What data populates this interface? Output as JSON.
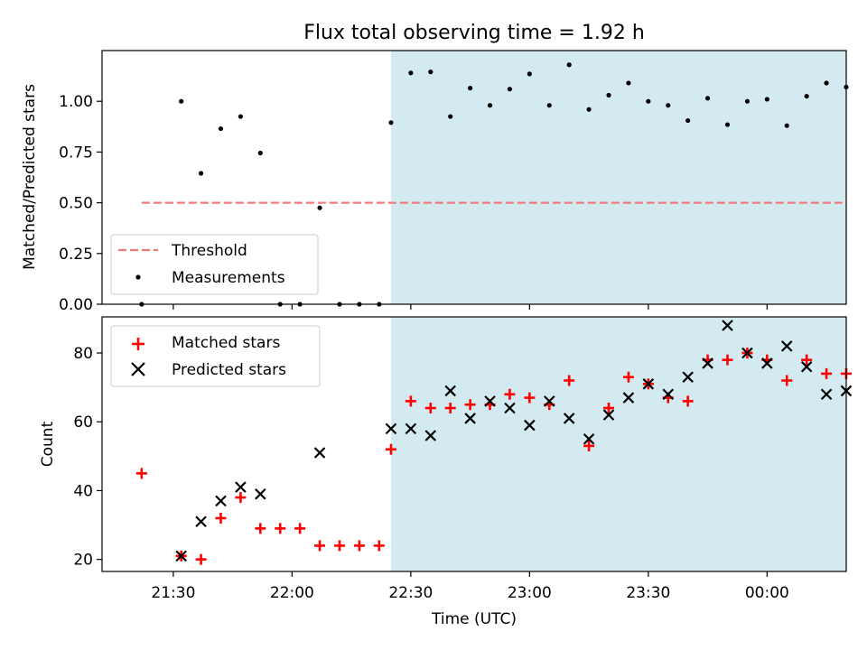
{
  "chart_data": [
    {
      "type": "scatter",
      "title": "Flux total observing time = 1.92 h",
      "xlabel": "",
      "ylabel": "Matched/Predicted stars",
      "xlim": [
        -18,
        170
      ],
      "ylim": [
        0.0,
        1.25
      ],
      "yticks": [
        0.0,
        0.25,
        0.5,
        0.75,
        1.0
      ],
      "ytick_labels": [
        "0.00",
        "0.25",
        "0.50",
        "0.75",
        "1.00"
      ],
      "shaded_region": {
        "x_start": 55,
        "x_end": 170,
        "color": "#d4eaf1"
      },
      "threshold": {
        "name": "Threshold",
        "y": 0.5,
        "x_start": -8,
        "x_end": 170,
        "color": "#f07a7a"
      },
      "series": [
        {
          "name": "Measurements",
          "marker": "dot",
          "color": "#000000",
          "x": [
            -8,
            2,
            7,
            12,
            17,
            22,
            27,
            32,
            37,
            42,
            47,
            52,
            55,
            60,
            65,
            70,
            75,
            80,
            85,
            90,
            95,
            100,
            105,
            110,
            115,
            120,
            125,
            130,
            135,
            140,
            145,
            150,
            155,
            160,
            165,
            170
          ],
          "y": [
            0.0,
            1.0,
            0.645,
            0.865,
            0.925,
            0.745,
            0.0,
            0.0,
            0.475,
            0.0,
            0.0,
            0.0,
            0.895,
            1.14,
            1.145,
            0.925,
            1.065,
            0.98,
            1.06,
            1.135,
            0.98,
            1.18,
            0.96,
            1.03,
            1.09,
            1.0,
            0.98,
            0.905,
            1.015,
            0.885,
            1.0,
            1.01,
            0.88,
            1.025,
            1.09,
            1.07
          ]
        }
      ],
      "legend": {
        "location": "lower-left",
        "entries": [
          "Threshold",
          "Measurements"
        ]
      }
    },
    {
      "type": "scatter",
      "title": "",
      "xlabel": "Time (UTC)",
      "ylabel": "Count",
      "xlim": [
        -18,
        170
      ],
      "ylim": [
        16.5,
        90.5
      ],
      "yticks": [
        20,
        40,
        60,
        80
      ],
      "ytick_labels": [
        "20",
        "40",
        "60",
        "80"
      ],
      "xticks": [
        0,
        30,
        60,
        90,
        120,
        150
      ],
      "xtick_labels": [
        "21:30",
        "22:00",
        "22:30",
        "23:00",
        "23:30",
        "00:00"
      ],
      "shaded_region": {
        "x_start": 55,
        "x_end": 170,
        "color": "#d4eaf1"
      },
      "series": [
        {
          "name": "Matched stars",
          "marker": "plus",
          "color": "#ff0000",
          "x": [
            -8,
            2,
            7,
            12,
            17,
            22,
            27,
            32,
            37,
            42,
            47,
            52,
            55,
            60,
            65,
            70,
            75,
            80,
            85,
            90,
            95,
            100,
            105,
            110,
            115,
            120,
            125,
            130,
            135,
            140,
            145,
            150,
            155,
            160,
            165,
            170
          ],
          "y": [
            45,
            21,
            20,
            32,
            38,
            29,
            29,
            29,
            24,
            24,
            24,
            24,
            52,
            66,
            64,
            64,
            65,
            65,
            68,
            67,
            65,
            72,
            53,
            64,
            73,
            71,
            67,
            66,
            78,
            78,
            80,
            78,
            72,
            78,
            74,
            74
          ]
        },
        {
          "name": "Predicted stars",
          "marker": "x",
          "color": "#000000",
          "x": [
            2,
            7,
            12,
            17,
            22,
            37,
            55,
            60,
            65,
            70,
            75,
            80,
            85,
            90,
            95,
            100,
            105,
            110,
            115,
            120,
            125,
            130,
            135,
            140,
            145,
            150,
            155,
            160,
            165,
            170
          ],
          "y": [
            21,
            31,
            37,
            41,
            39,
            51,
            58,
            58,
            56,
            69,
            61,
            66,
            64,
            59,
            66,
            61,
            55,
            62,
            67,
            71,
            68,
            73,
            77,
            88,
            80,
            77,
            82,
            76,
            68,
            69
          ]
        }
      ],
      "legend": {
        "location": "upper-left",
        "entries": [
          "Matched stars",
          "Predicted stars"
        ]
      }
    }
  ]
}
